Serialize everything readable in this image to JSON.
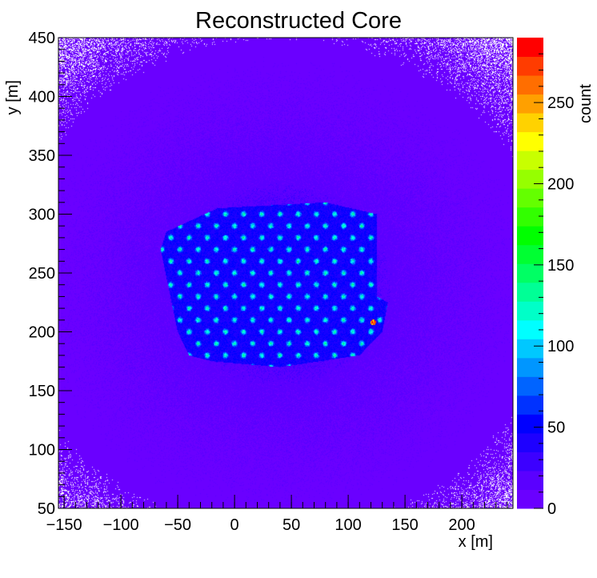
{
  "chart_data": {
    "type": "heatmap",
    "title": "Reconstructed Core",
    "xlabel": "x [m]",
    "ylabel": "y [m]",
    "zlabel": "count",
    "xlim": [
      -155,
      245
    ],
    "ylim": [
      50,
      450
    ],
    "zlim": [
      0,
      290
    ],
    "x_ticks": [
      -150,
      -100,
      -50,
      0,
      50,
      100,
      150,
      200
    ],
    "y_ticks": [
      50,
      100,
      150,
      200,
      250,
      300,
      350,
      400,
      450
    ],
    "z_ticks": [
      0,
      50,
      100,
      150,
      200,
      250
    ],
    "background_count": 8,
    "array_region": {
      "polygon": [
        [
          -60,
          285
        ],
        [
          -15,
          305
        ],
        [
          80,
          310
        ],
        [
          125,
          300
        ],
        [
          125,
          230
        ],
        [
          135,
          225
        ],
        [
          130,
          200
        ],
        [
          110,
          180
        ],
        [
          40,
          170
        ],
        [
          -20,
          175
        ],
        [
          -40,
          180
        ],
        [
          -50,
          200
        ],
        [
          -65,
          270
        ]
      ],
      "count": 45
    },
    "halo": {
      "center": [
        40,
        240
      ],
      "radius_x": 160,
      "radius_y": 140,
      "count": 20
    },
    "detector_spots": {
      "x_start": -40,
      "x_end": 125,
      "y_start": 180,
      "y_end": 310,
      "spacing_x": 16,
      "spacing_y": 10,
      "peak_count": 130
    },
    "hot_spot": {
      "x": 122,
      "y": 208,
      "count": 270
    },
    "palette": [
      "#6a00ff",
      "#5a00ff",
      "#3c00ff",
      "#1e00ff",
      "#0000ff",
      "#0032ff",
      "#0064ff",
      "#0096ff",
      "#00c8ff",
      "#00ffff",
      "#00ffc8",
      "#00ff96",
      "#00ff64",
      "#00ff32",
      "#00ff00",
      "#32ff00",
      "#64ff00",
      "#96ff00",
      "#c8ff00",
      "#ffff00",
      "#ffd200",
      "#ffa000",
      "#ff6e00",
      "#ff3c00",
      "#ff0000"
    ]
  }
}
